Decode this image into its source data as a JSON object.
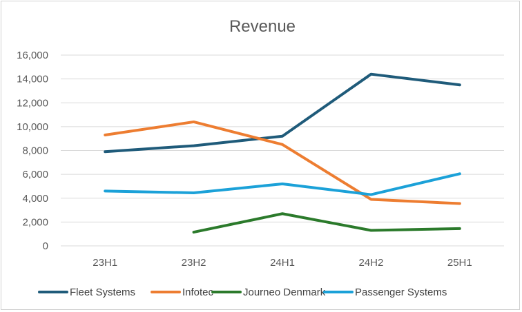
{
  "chart_data": {
    "type": "line",
    "title": "Revenue",
    "xlabel": "",
    "ylabel": "",
    "categories": [
      "23H1",
      "23H2",
      "24H1",
      "24H2",
      "25H1"
    ],
    "ylim": [
      0,
      16000
    ],
    "yticks": [
      0,
      2000,
      4000,
      6000,
      8000,
      10000,
      12000,
      14000,
      16000
    ],
    "ytick_labels": [
      "0",
      "2,000",
      "4,000",
      "6,000",
      "8,000",
      "10,000",
      "12,000",
      "14,000",
      "16,000"
    ],
    "grid": true,
    "legend_position": "bottom",
    "series": [
      {
        "name": "Fleet Systems",
        "color": "#1f5b7a",
        "values": [
          7900,
          8400,
          9200,
          14400,
          13500
        ]
      },
      {
        "name": "Infotec",
        "color": "#ed7d31",
        "values": [
          9300,
          10400,
          8500,
          3900,
          3550
        ]
      },
      {
        "name": "Journeo Denmark",
        "color": "#2b7a2b",
        "values": [
          null,
          1150,
          2700,
          1300,
          1450
        ]
      },
      {
        "name": "Passenger Systems",
        "color": "#1ba1d8",
        "values": [
          4600,
          4450,
          5200,
          4300,
          6050
        ]
      }
    ]
  }
}
